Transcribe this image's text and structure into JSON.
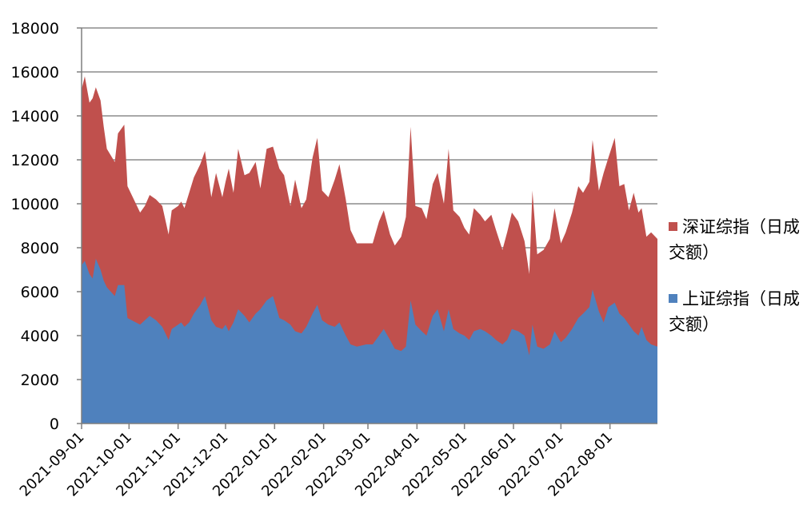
{
  "chart_data": {
    "type": "area",
    "stacked": true,
    "title": "",
    "xlabel": "",
    "ylabel": "",
    "ylim": [
      0,
      18000
    ],
    "yticks": [
      "0",
      "2000",
      "4000",
      "6000",
      "8000",
      "10000",
      "12000",
      "14000",
      "16000",
      "18000"
    ],
    "xticks": [
      "2021-09-01",
      "2021-10-01",
      "2021-11-01",
      "2021-12-01",
      "2022-01-01",
      "2022-02-01",
      "2022-03-01",
      "2022-04-01",
      "2022-05-01",
      "2022-06-01",
      "2022-07-01",
      "2022-08-01"
    ],
    "x_range": [
      "2021-09-01",
      "2022-08-31"
    ],
    "grid": "horizontal",
    "legend_position": "right",
    "series": [
      {
        "name": "上证综指（日成交额）",
        "color": "#4f81bd",
        "points": [
          [
            "2021-09-01",
            7200
          ],
          [
            "2021-09-03",
            7400
          ],
          [
            "2021-09-06",
            6800
          ],
          [
            "2021-09-08",
            6600
          ],
          [
            "2021-09-10",
            7500
          ],
          [
            "2021-09-13",
            7000
          ],
          [
            "2021-09-15",
            6500
          ],
          [
            "2021-09-17",
            6200
          ],
          [
            "2021-09-22",
            5800
          ],
          [
            "2021-09-24",
            6300
          ],
          [
            "2021-09-28",
            6300
          ],
          [
            "2021-09-30",
            4800
          ],
          [
            "2021-10-08",
            4500
          ],
          [
            "2021-10-11",
            4700
          ],
          [
            "2021-10-14",
            4900
          ],
          [
            "2021-10-18",
            4700
          ],
          [
            "2021-10-22",
            4400
          ],
          [
            "2021-10-26",
            3800
          ],
          [
            "2021-10-28",
            4300
          ],
          [
            "2021-11-01",
            4500
          ],
          [
            "2021-11-03",
            4600
          ],
          [
            "2021-11-05",
            4400
          ],
          [
            "2021-11-08",
            4600
          ],
          [
            "2021-11-11",
            5000
          ],
          [
            "2021-11-15",
            5400
          ],
          [
            "2021-11-18",
            5800
          ],
          [
            "2021-11-22",
            4700
          ],
          [
            "2021-11-25",
            4400
          ],
          [
            "2021-11-29",
            4300
          ],
          [
            "2021-12-01",
            4500
          ],
          [
            "2021-12-03",
            4200
          ],
          [
            "2021-12-06",
            4600
          ],
          [
            "2021-12-09",
            5200
          ],
          [
            "2021-12-13",
            4900
          ],
          [
            "2021-12-16",
            4600
          ],
          [
            "2021-12-20",
            5000
          ],
          [
            "2021-12-23",
            5200
          ],
          [
            "2021-12-27",
            5600
          ],
          [
            "2021-12-31",
            5800
          ],
          [
            "2022-01-04",
            4800
          ],
          [
            "2022-01-07",
            4700
          ],
          [
            "2022-01-11",
            4500
          ],
          [
            "2022-01-14",
            4200
          ],
          [
            "2022-01-18",
            4100
          ],
          [
            "2022-01-21",
            4400
          ],
          [
            "2022-01-25",
            5000
          ],
          [
            "2022-01-28",
            5400
          ],
          [
            "2022-01-31",
            4700
          ],
          [
            "2022-02-04",
            4500
          ],
          [
            "2022-02-08",
            4400
          ],
          [
            "2022-02-11",
            4600
          ],
          [
            "2022-02-15",
            4000
          ],
          [
            "2022-02-18",
            3600
          ],
          [
            "2022-02-22",
            3500
          ],
          [
            "2022-02-28",
            3600
          ],
          [
            "2022-03-04",
            3600
          ],
          [
            "2022-03-08",
            4000
          ],
          [
            "2022-03-11",
            4300
          ],
          [
            "2022-03-15",
            3800
          ],
          [
            "2022-03-18",
            3400
          ],
          [
            "2022-03-22",
            3300
          ],
          [
            "2022-03-25",
            3500
          ],
          [
            "2022-03-28",
            5600
          ],
          [
            "2022-03-31",
            4500
          ],
          [
            "2022-04-04",
            4200
          ],
          [
            "2022-04-07",
            4000
          ],
          [
            "2022-04-11",
            4900
          ],
          [
            "2022-04-14",
            5200
          ],
          [
            "2022-04-18",
            4200
          ],
          [
            "2022-04-21",
            5200
          ],
          [
            "2022-04-24",
            4300
          ],
          [
            "2022-04-28",
            4100
          ],
          [
            "2022-05-01",
            4000
          ],
          [
            "2022-05-04",
            3800
          ],
          [
            "2022-05-07",
            4200
          ],
          [
            "2022-05-11",
            4300
          ],
          [
            "2022-05-14",
            4200
          ],
          [
            "2022-05-18",
            4000
          ],
          [
            "2022-05-21",
            3800
          ],
          [
            "2022-05-25",
            3600
          ],
          [
            "2022-05-28",
            3800
          ],
          [
            "2022-05-31",
            4300
          ],
          [
            "2022-06-04",
            4200
          ],
          [
            "2022-06-08",
            4000
          ],
          [
            "2022-06-11",
            3100
          ],
          [
            "2022-06-13",
            4500
          ],
          [
            "2022-06-16",
            3500
          ],
          [
            "2022-06-20",
            3400
          ],
          [
            "2022-06-24",
            3600
          ],
          [
            "2022-06-27",
            4200
          ],
          [
            "2022-07-01",
            3700
          ],
          [
            "2022-07-04",
            3900
          ],
          [
            "2022-07-08",
            4300
          ],
          [
            "2022-07-12",
            4800
          ],
          [
            "2022-07-15",
            5000
          ],
          [
            "2022-07-19",
            5300
          ],
          [
            "2022-07-21",
            6100
          ],
          [
            "2022-07-25",
            5100
          ],
          [
            "2022-07-28",
            4600
          ],
          [
            "2022-07-31",
            5300
          ],
          [
            "2022-08-04",
            5500
          ],
          [
            "2022-08-07",
            5000
          ],
          [
            "2022-08-10",
            4800
          ],
          [
            "2022-08-13",
            4500
          ],
          [
            "2022-08-16",
            4200
          ],
          [
            "2022-08-19",
            4000
          ],
          [
            "2022-08-21",
            4400
          ],
          [
            "2022-08-24",
            3800
          ],
          [
            "2022-08-27",
            3600
          ],
          [
            "2022-08-31",
            3500
          ]
        ]
      },
      {
        "name": "深证综指（日成交额）",
        "color": "#c0504d",
        "points": [
          [
            "2021-09-01",
            15200
          ],
          [
            "2021-09-03",
            15800
          ],
          [
            "2021-09-06",
            14600
          ],
          [
            "2021-09-08",
            14800
          ],
          [
            "2021-09-10",
            15300
          ],
          [
            "2021-09-13",
            14700
          ],
          [
            "2021-09-15",
            13500
          ],
          [
            "2021-09-17",
            12500
          ],
          [
            "2021-09-22",
            11900
          ],
          [
            "2021-09-24",
            13200
          ],
          [
            "2021-09-28",
            13600
          ],
          [
            "2021-09-30",
            10800
          ],
          [
            "2021-10-08",
            9600
          ],
          [
            "2021-10-11",
            9900
          ],
          [
            "2021-10-14",
            10400
          ],
          [
            "2021-10-18",
            10200
          ],
          [
            "2021-10-22",
            9900
          ],
          [
            "2021-10-26",
            8600
          ],
          [
            "2021-10-28",
            9700
          ],
          [
            "2021-11-01",
            9900
          ],
          [
            "2021-11-03",
            10100
          ],
          [
            "2021-11-05",
            9800
          ],
          [
            "2021-11-08",
            10500
          ],
          [
            "2021-11-11",
            11200
          ],
          [
            "2021-11-15",
            11800
          ],
          [
            "2021-11-18",
            12400
          ],
          [
            "2021-11-22",
            10300
          ],
          [
            "2021-11-25",
            11400
          ],
          [
            "2021-11-29",
            10300
          ],
          [
            "2021-12-01",
            11000
          ],
          [
            "2021-12-03",
            11600
          ],
          [
            "2021-12-06",
            10500
          ],
          [
            "2021-12-09",
            12500
          ],
          [
            "2021-12-13",
            11300
          ],
          [
            "2021-12-16",
            11400
          ],
          [
            "2021-12-20",
            11900
          ],
          [
            "2021-12-23",
            10700
          ],
          [
            "2021-12-27",
            12500
          ],
          [
            "2021-12-31",
            12600
          ],
          [
            "2022-01-04",
            11600
          ],
          [
            "2022-01-07",
            11300
          ],
          [
            "2022-01-11",
            9900
          ],
          [
            "2022-01-14",
            11100
          ],
          [
            "2022-01-18",
            9800
          ],
          [
            "2022-01-21",
            10200
          ],
          [
            "2022-01-25",
            12100
          ],
          [
            "2022-01-28",
            13000
          ],
          [
            "2022-01-31",
            10600
          ],
          [
            "2022-02-04",
            10300
          ],
          [
            "2022-02-08",
            11100
          ],
          [
            "2022-02-11",
            11800
          ],
          [
            "2022-02-15",
            10200
          ],
          [
            "2022-02-18",
            8800
          ],
          [
            "2022-02-22",
            8200
          ],
          [
            "2022-02-28",
            8200
          ],
          [
            "2022-03-04",
            8200
          ],
          [
            "2022-03-08",
            9200
          ],
          [
            "2022-03-11",
            9700
          ],
          [
            "2022-03-15",
            8600
          ],
          [
            "2022-03-18",
            8100
          ],
          [
            "2022-03-22",
            8500
          ],
          [
            "2022-03-25",
            9400
          ],
          [
            "2022-03-28",
            13500
          ],
          [
            "2022-03-31",
            9900
          ],
          [
            "2022-04-04",
            9800
          ],
          [
            "2022-04-07",
            9300
          ],
          [
            "2022-04-11",
            10900
          ],
          [
            "2022-04-14",
            11400
          ],
          [
            "2022-04-18",
            10000
          ],
          [
            "2022-04-21",
            12500
          ],
          [
            "2022-04-24",
            9700
          ],
          [
            "2022-04-28",
            9400
          ],
          [
            "2022-05-01",
            8900
          ],
          [
            "2022-05-04",
            8600
          ],
          [
            "2022-05-07",
            9800
          ],
          [
            "2022-05-11",
            9500
          ],
          [
            "2022-05-14",
            9200
          ],
          [
            "2022-05-18",
            9500
          ],
          [
            "2022-05-21",
            8800
          ],
          [
            "2022-05-25",
            7900
          ],
          [
            "2022-05-28",
            8700
          ],
          [
            "2022-05-31",
            9600
          ],
          [
            "2022-06-04",
            9200
          ],
          [
            "2022-06-08",
            8300
          ],
          [
            "2022-06-11",
            6800
          ],
          [
            "2022-06-13",
            10600
          ],
          [
            "2022-06-16",
            7700
          ],
          [
            "2022-06-20",
            7900
          ],
          [
            "2022-06-24",
            8400
          ],
          [
            "2022-06-27",
            9800
          ],
          [
            "2022-07-01",
            8200
          ],
          [
            "2022-07-04",
            8700
          ],
          [
            "2022-07-08",
            9600
          ],
          [
            "2022-07-12",
            10800
          ],
          [
            "2022-07-15",
            10500
          ],
          [
            "2022-07-19",
            11000
          ],
          [
            "2022-07-21",
            12900
          ],
          [
            "2022-07-25",
            10600
          ],
          [
            "2022-07-28",
            11400
          ],
          [
            "2022-07-31",
            12100
          ],
          [
            "2022-08-04",
            13000
          ],
          [
            "2022-08-07",
            10800
          ],
          [
            "2022-08-10",
            10900
          ],
          [
            "2022-08-13",
            9700
          ],
          [
            "2022-08-16",
            10500
          ],
          [
            "2022-08-19",
            9600
          ],
          [
            "2022-08-21",
            9800
          ],
          [
            "2022-08-24",
            8500
          ],
          [
            "2022-08-27",
            8700
          ],
          [
            "2022-08-31",
            8400
          ]
        ]
      }
    ]
  },
  "legend": [
    {
      "label": "深证综指（日成交额）",
      "color": "#c0504d"
    },
    {
      "label": "上证综指（日成交额）",
      "color": "#4f81bd"
    }
  ]
}
